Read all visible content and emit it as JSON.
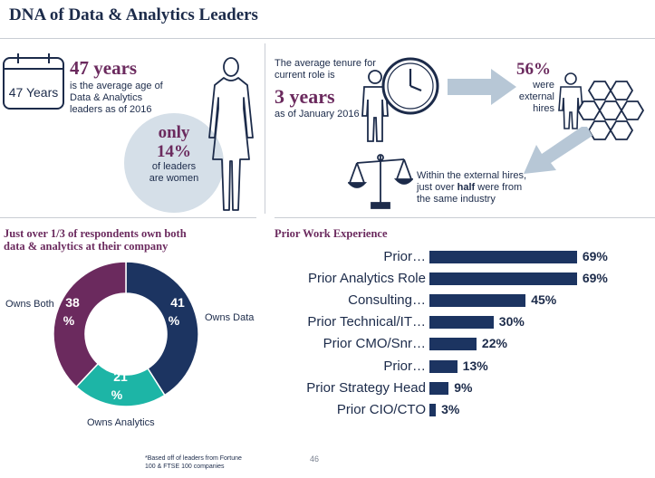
{
  "title": "DNA of Data & Analytics Leaders",
  "age": {
    "calendar_label": "47 Years",
    "headline": "47 years",
    "desc_line1": "is the average age of",
    "desc_line2": "Data & Analytics",
    "desc_line3": "leaders as of 2016"
  },
  "women": {
    "only": "only",
    "pct": "14%",
    "line1": "of leaders",
    "line2": "are women"
  },
  "tenure": {
    "line1": "The average tenure for",
    "line2": "current role is",
    "headline": "3 years",
    "line3": "as of January 2016"
  },
  "external": {
    "pct": "56%",
    "line1": "were",
    "line2": "external",
    "line3": "hires"
  },
  "industry": {
    "line1": "Within the external hires,",
    "line2_pre": "just over ",
    "line2_bold": "half",
    "line2_post": " were from",
    "line3": "the same industry"
  },
  "ownership": {
    "heading_line1": "Just over 1/3 of respondents own both",
    "heading_line2": "data & analytics at their company"
  },
  "prior_heading": "Prior Work Experience",
  "footnote_line1": "*Based off of leaders from Fortune",
  "footnote_line2": "100 & FTSE 100 companies",
  "page_number": "46",
  "colors": {
    "navy": "#1c3461",
    "purple": "#6b2a5e",
    "teal": "#1db5a6",
    "light_blue": "#d5dfe8"
  },
  "chart_data": [
    {
      "type": "pie",
      "title": "Just over 1/3 of respondents own both data & analytics at their company",
      "slices": [
        {
          "label": "Owns Data",
          "value": 41,
          "value_label": "41 %",
          "color": "#1c3461"
        },
        {
          "label": "Owns Analytics",
          "value": 21,
          "value_label": "21 %",
          "color": "#1db5a6"
        },
        {
          "label": "Owns Both",
          "value": 38,
          "value_label": "38 %",
          "color": "#6b2a5e"
        }
      ]
    },
    {
      "type": "bar",
      "orientation": "horizontal",
      "title": "Prior Work Experience",
      "categories": [
        "Prior…",
        "Prior Analytics Role",
        "Consulting…",
        "Prior Technical/IT…",
        "Prior CMO/Snr…",
        "Prior…",
        "Prior Strategy Head",
        "Prior CIO/CTO"
      ],
      "values": [
        69,
        69,
        45,
        30,
        22,
        13,
        9,
        3
      ],
      "value_labels": [
        "69%",
        "69%",
        "45%",
        "30%",
        "22%",
        "13%",
        "9%",
        "3%"
      ],
      "xlim": [
        0,
        100
      ]
    }
  ]
}
